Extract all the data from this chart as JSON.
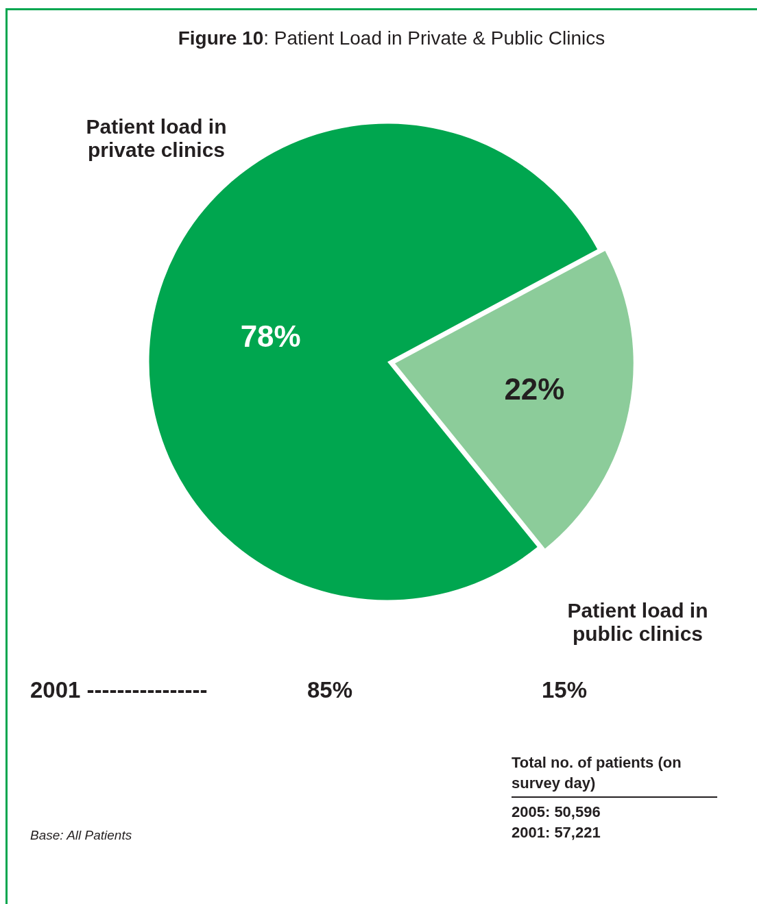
{
  "chart_data": {
    "type": "pie",
    "title": "Figure 10: Patient Load in Private & Public Clinics",
    "categories": [
      "Patient load in private clinics",
      "Patient load in public clinics"
    ],
    "values": [
      78,
      22
    ],
    "colors": [
      "#00a64f",
      "#8ccc9a"
    ],
    "value_labels": [
      "78%",
      "22%"
    ],
    "legend": false,
    "annotations": [
      "2001 ----------------",
      "85%",
      "15%",
      "Total no. of patients (on survey day)",
      "2005: 50,596",
      "2001: 57,221",
      "Base: All Patients"
    ]
  }
}
